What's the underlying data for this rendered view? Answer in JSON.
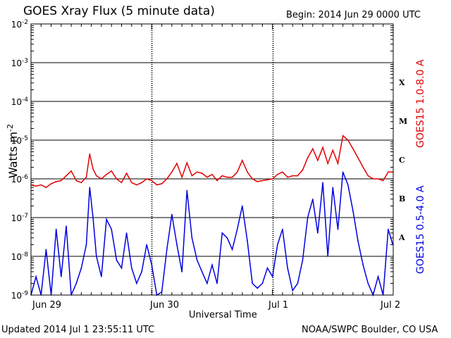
{
  "title": "GOES Xray Flux (5 minute data)",
  "begin_label": "Begin:  2014 Jun 29 0000 UTC",
  "updated_label": "Updated 2014 Jul  1 23:55:11 UTC",
  "credit_label": "NOAA/SWPC Boulder, CO USA",
  "colors": {
    "long": "#e00000",
    "short": "#0000e0"
  },
  "chart_data": {
    "type": "line",
    "title": "GOES Xray Flux (5 minute data)",
    "xlabel": "Universal Time",
    "ylabel_base": "Watts m",
    "ylabel_exp": "-2",
    "y_scale": "log",
    "ylim": [
      1e-09,
      0.01
    ],
    "xlim": [
      "2014-06-29T00:00",
      "2014-07-02T00:00"
    ],
    "x_ticks": [
      "Jun 29",
      "Jun 30",
      "Jul 1",
      "Jul 2"
    ],
    "y_ticks": [
      {
        "base": "10",
        "exp": "-9",
        "value": 1e-09
      },
      {
        "base": "10",
        "exp": "-8",
        "value": 1e-08
      },
      {
        "base": "10",
        "exp": "-7",
        "value": 1e-07
      },
      {
        "base": "10",
        "exp": "-6",
        "value": 1e-06
      },
      {
        "base": "10",
        "exp": "-5",
        "value": 1e-05
      },
      {
        "base": "10",
        "exp": "-4",
        "value": 0.0001
      },
      {
        "base": "10",
        "exp": "-3",
        "value": 0.001
      },
      {
        "base": "10",
        "exp": "-2",
        "value": 0.01
      }
    ],
    "flare_classes": [
      {
        "label": "A",
        "value": 3e-08
      },
      {
        "label": "B",
        "value": 3e-07
      },
      {
        "label": "C",
        "value": 3e-06
      },
      {
        "label": "M",
        "value": 3e-05
      },
      {
        "label": "X",
        "value": 0.0003
      }
    ],
    "grid": true,
    "series": [
      {
        "name": "GOES15 1.0-8.0 A",
        "color": "#e00000",
        "points": [
          [
            "2014-06-29T00:00",
            7e-07
          ],
          [
            "2014-06-29T01:00",
            6.5e-07
          ],
          [
            "2014-06-29T02:00",
            7e-07
          ],
          [
            "2014-06-29T03:00",
            6e-07
          ],
          [
            "2014-06-29T04:00",
            7.5e-07
          ],
          [
            "2014-06-29T05:00",
            8.5e-07
          ],
          [
            "2014-06-29T06:00",
            9e-07
          ],
          [
            "2014-06-29T07:00",
            1.2e-06
          ],
          [
            "2014-06-29T08:00",
            1.6e-06
          ],
          [
            "2014-06-29T09:00",
            9e-07
          ],
          [
            "2014-06-29T10:00",
            8e-07
          ],
          [
            "2014-06-29T11:00",
            1.1e-06
          ],
          [
            "2014-06-29T11:40",
            4.4e-06
          ],
          [
            "2014-06-29T12:20",
            1.8e-06
          ],
          [
            "2014-06-29T13:00",
            1.2e-06
          ],
          [
            "2014-06-29T14:00",
            1e-06
          ],
          [
            "2014-06-29T15:00",
            1.3e-06
          ],
          [
            "2014-06-29T16:00",
            1.6e-06
          ],
          [
            "2014-06-29T17:00",
            1e-06
          ],
          [
            "2014-06-29T18:00",
            8e-07
          ],
          [
            "2014-06-29T19:00",
            1.4e-06
          ],
          [
            "2014-06-29T20:00",
            8e-07
          ],
          [
            "2014-06-29T21:00",
            7e-07
          ],
          [
            "2014-06-29T22:00",
            8e-07
          ],
          [
            "2014-06-29T23:00",
            1e-06
          ],
          [
            "2014-06-30T00:00",
            9e-07
          ],
          [
            "2014-06-30T01:00",
            7e-07
          ],
          [
            "2014-06-30T02:00",
            7.5e-07
          ],
          [
            "2014-06-30T03:00",
            1e-06
          ],
          [
            "2014-06-30T04:00",
            1.5e-06
          ],
          [
            "2014-06-30T05:00",
            2.5e-06
          ],
          [
            "2014-06-30T06:00",
            1.1e-06
          ],
          [
            "2014-06-30T07:00",
            2.6e-06
          ],
          [
            "2014-06-30T08:00",
            1.2e-06
          ],
          [
            "2014-06-30T09:00",
            1.5e-06
          ],
          [
            "2014-06-30T10:00",
            1.4e-06
          ],
          [
            "2014-06-30T11:00",
            1.1e-06
          ],
          [
            "2014-06-30T12:00",
            1.3e-06
          ],
          [
            "2014-06-30T13:00",
            9e-07
          ],
          [
            "2014-06-30T14:00",
            1.2e-06
          ],
          [
            "2014-06-30T15:00",
            1.1e-06
          ],
          [
            "2014-06-30T16:00",
            1.1e-06
          ],
          [
            "2014-06-30T17:00",
            1.5e-06
          ],
          [
            "2014-06-30T18:00",
            3e-06
          ],
          [
            "2014-06-30T19:00",
            1.5e-06
          ],
          [
            "2014-06-30T20:00",
            1e-06
          ],
          [
            "2014-06-30T21:00",
            8.5e-07
          ],
          [
            "2014-06-30T22:00",
            9e-07
          ],
          [
            "2014-06-30T23:00",
            9.5e-07
          ],
          [
            "2014-07-01T00:00",
            1e-06
          ],
          [
            "2014-07-01T01:00",
            1.3e-06
          ],
          [
            "2014-07-01T02:00",
            1.5e-06
          ],
          [
            "2014-07-01T03:00",
            1.1e-06
          ],
          [
            "2014-07-01T04:00",
            1.2e-06
          ],
          [
            "2014-07-01T05:00",
            1.2e-06
          ],
          [
            "2014-07-01T06:00",
            1.7e-06
          ],
          [
            "2014-07-01T07:00",
            3.5e-06
          ],
          [
            "2014-07-01T08:00",
            6e-06
          ],
          [
            "2014-07-01T09:00",
            3e-06
          ],
          [
            "2014-07-01T10:00",
            6.5e-06
          ],
          [
            "2014-07-01T11:00",
            2.5e-06
          ],
          [
            "2014-07-01T12:00",
            5.5e-06
          ],
          [
            "2014-07-01T13:00",
            2.5e-06
          ],
          [
            "2014-07-01T14:00",
            1.3e-05
          ],
          [
            "2014-07-01T15:00",
            1e-05
          ],
          [
            "2014-07-01T16:00",
            6e-06
          ],
          [
            "2014-07-01T17:00",
            3.5e-06
          ],
          [
            "2014-07-01T18:00",
            2e-06
          ],
          [
            "2014-07-01T19:00",
            1.2e-06
          ],
          [
            "2014-07-01T20:00",
            1e-06
          ],
          [
            "2014-07-01T21:00",
            1e-06
          ],
          [
            "2014-07-01T22:00",
            9e-07
          ],
          [
            "2014-07-01T23:00",
            1.5e-06
          ],
          [
            "2014-07-01T23:55",
            1.5e-06
          ]
        ]
      },
      {
        "name": "GOES15 0.5-4.0 A",
        "color": "#0000e0",
        "points": [
          [
            "2014-06-29T00:00",
            1e-09
          ],
          [
            "2014-06-29T01:00",
            3e-09
          ],
          [
            "2014-06-29T02:00",
            1e-09
          ],
          [
            "2014-06-29T03:00",
            1.5e-08
          ],
          [
            "2014-06-29T04:00",
            1e-09
          ],
          [
            "2014-06-29T05:00",
            5e-08
          ],
          [
            "2014-06-29T06:00",
            3e-09
          ],
          [
            "2014-06-29T07:00",
            6e-08
          ],
          [
            "2014-06-29T08:00",
            1e-09
          ],
          [
            "2014-06-29T09:00",
            2e-09
          ],
          [
            "2014-06-29T10:00",
            5e-09
          ],
          [
            "2014-06-29T11:00",
            2e-08
          ],
          [
            "2014-06-29T11:40",
            6e-07
          ],
          [
            "2014-06-29T12:20",
            1e-07
          ],
          [
            "2014-06-29T13:00",
            1e-08
          ],
          [
            "2014-06-29T14:00",
            3e-09
          ],
          [
            "2014-06-29T15:00",
            9e-08
          ],
          [
            "2014-06-29T16:00",
            5e-08
          ],
          [
            "2014-06-29T17:00",
            8e-09
          ],
          [
            "2014-06-29T18:00",
            5e-09
          ],
          [
            "2014-06-29T19:00",
            4e-08
          ],
          [
            "2014-06-29T20:00",
            5e-09
          ],
          [
            "2014-06-29T21:00",
            2e-09
          ],
          [
            "2014-06-29T22:00",
            4e-09
          ],
          [
            "2014-06-29T23:00",
            2e-08
          ],
          [
            "2014-06-30T00:00",
            6e-09
          ],
          [
            "2014-06-30T01:00",
            1e-09
          ],
          [
            "2014-06-30T02:00",
            1.2e-09
          ],
          [
            "2014-06-30T03:00",
            1.5e-08
          ],
          [
            "2014-06-30T04:00",
            1.2e-07
          ],
          [
            "2014-06-30T05:00",
            2e-08
          ],
          [
            "2014-06-30T06:00",
            4e-09
          ],
          [
            "2014-06-30T07:00",
            5e-07
          ],
          [
            "2014-06-30T08:00",
            3e-08
          ],
          [
            "2014-06-30T09:00",
            8e-09
          ],
          [
            "2014-06-30T10:00",
            4e-09
          ],
          [
            "2014-06-30T11:00",
            2e-09
          ],
          [
            "2014-06-30T12:00",
            6e-09
          ],
          [
            "2014-06-30T13:00",
            2e-09
          ],
          [
            "2014-06-30T14:00",
            4e-08
          ],
          [
            "2014-06-30T15:00",
            3e-08
          ],
          [
            "2014-06-30T16:00",
            1.5e-08
          ],
          [
            "2014-06-30T17:00",
            5e-08
          ],
          [
            "2014-06-30T18:00",
            2e-07
          ],
          [
            "2014-06-30T19:00",
            2.5e-08
          ],
          [
            "2014-06-30T20:00",
            2e-09
          ],
          [
            "2014-06-30T21:00",
            1.5e-09
          ],
          [
            "2014-06-30T22:00",
            2e-09
          ],
          [
            "2014-06-30T23:00",
            5e-09
          ],
          [
            "2014-07-01T00:00",
            3e-09
          ],
          [
            "2014-07-01T01:00",
            2e-08
          ],
          [
            "2014-07-01T02:00",
            5e-08
          ],
          [
            "2014-07-01T03:00",
            5e-09
          ],
          [
            "2014-07-01T04:00",
            1.3e-09
          ],
          [
            "2014-07-01T05:00",
            2e-09
          ],
          [
            "2014-07-01T06:00",
            8e-09
          ],
          [
            "2014-07-01T07:00",
            1e-07
          ],
          [
            "2014-07-01T08:00",
            3e-07
          ],
          [
            "2014-07-01T09:00",
            4e-08
          ],
          [
            "2014-07-01T10:00",
            8e-07
          ],
          [
            "2014-07-01T11:00",
            1e-08
          ],
          [
            "2014-07-01T12:00",
            6e-07
          ],
          [
            "2014-07-01T13:00",
            5e-08
          ],
          [
            "2014-07-01T14:00",
            1.5e-06
          ],
          [
            "2014-07-01T15:00",
            7e-07
          ],
          [
            "2014-07-01T16:00",
            1.5e-07
          ],
          [
            "2014-07-01T17:00",
            2.5e-08
          ],
          [
            "2014-07-01T18:00",
            6e-09
          ],
          [
            "2014-07-01T19:00",
            2e-09
          ],
          [
            "2014-07-01T20:00",
            1e-09
          ],
          [
            "2014-07-01T21:00",
            3e-09
          ],
          [
            "2014-07-01T22:00",
            1e-09
          ],
          [
            "2014-07-01T23:00",
            5e-08
          ],
          [
            "2014-07-01T23:55",
            2e-08
          ]
        ]
      }
    ]
  }
}
